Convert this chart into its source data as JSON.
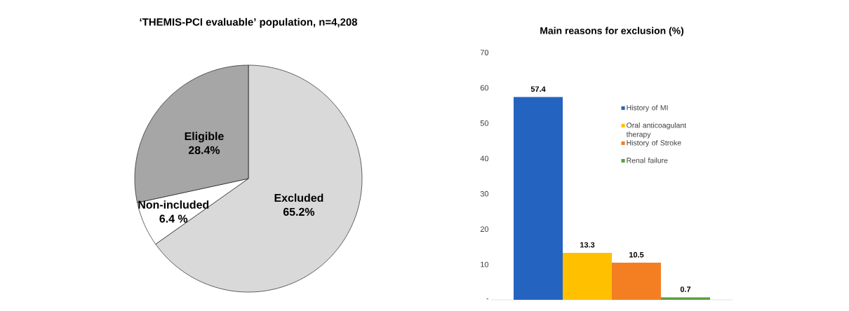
{
  "chart_data": [
    {
      "type": "pie",
      "title": "‘THEMIS-PCI evaluable’ population, n=4,208",
      "categories": [
        "Excluded",
        "Non-included",
        "Eligible"
      ],
      "values": [
        65.2,
        6.4,
        28.4
      ],
      "value_labels": [
        "65.2%",
        "6.4 %",
        "28.4%"
      ],
      "colors": [
        "#d9d9d9",
        "#ffffff",
        "#a6a6a6"
      ]
    },
    {
      "type": "bar",
      "title": "Main reasons for exclusion (%)",
      "categories": [
        null
      ],
      "series": [
        {
          "name": "History of MI",
          "color": "#2563c0",
          "values": [
            57.4
          ]
        },
        {
          "name": "Oral anticoagulant therapy",
          "color": "#ffc000",
          "values": [
            13.3
          ]
        },
        {
          "name": "History of Stroke",
          "color": "#f47f22",
          "values": [
            10.5
          ]
        },
        {
          "name": "Renal failure",
          "color": "#5fa03a",
          "values": [
            0.7
          ]
        }
      ],
      "data_labels": true,
      "legend": "right",
      "ylim": [
        0,
        70
      ],
      "yticks": [
        {
          "value": 0,
          "label": "-"
        },
        10,
        20,
        30,
        40,
        50,
        60,
        70
      ]
    }
  ]
}
